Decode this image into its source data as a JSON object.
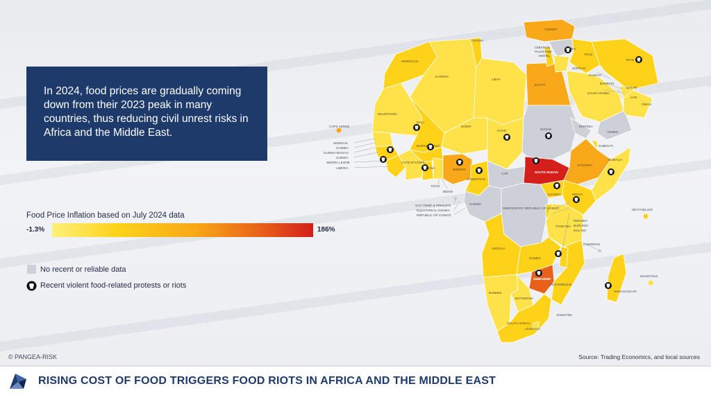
{
  "info_box": {
    "text": "In 2024, food prices are gradually coming down from their 2023 peak in many countries, thus reducing civil unrest risks in Africa and the Middle East."
  },
  "legend": {
    "title": "Food Price Inflation based on July 2024 data",
    "min_label": "-1.3%",
    "max_label": "186%",
    "no_data_label": "No recent or reliable data",
    "riot_label": "Recent violent food-related protests or riots"
  },
  "colors": {
    "low": "#fff07a",
    "mid": "#ffd21a",
    "high": "#f8a818",
    "very_high": "#e8601a",
    "max": "#d41f1a",
    "no_data": "#cdd0d6",
    "brand": "#1d3a6b"
  },
  "map": {
    "countries": {
      "turkey": "TURKEY",
      "syria": "SYRIA",
      "lebanon": "LEBANON",
      "palestine": "PALESTINE",
      "israel": "ISRAEL",
      "jordan": "JORDAN",
      "iraq": "IRAQ",
      "iran": "IRAN",
      "kuwait": "KUWAIT",
      "bahrain": "BAHRAIN",
      "qatar": "QATAR",
      "uae": "UAE",
      "oman": "OMAN",
      "saudi_arabia": "SAUDI ARABIA",
      "yemen": "YEMEN",
      "tunisia": "TUNISIA",
      "morocco": "MOROCCO",
      "algeria": "ALGERIA",
      "libya": "LIBYA",
      "egypt": "EGYPT",
      "mauritania": "MAURITANIA",
      "mali": "MALI",
      "niger": "NIGER",
      "chad": "CHAD",
      "sudan": "SUDAN",
      "eritrea": "ERITREA",
      "djibouti": "DJIBOUTI",
      "cape_verde": "CAPE VERDE",
      "senegal": "SENEGAL",
      "gambia": "GAMBIA",
      "guinea_bissau": "GUINEA-BISSAU",
      "guinea": "GUINEA",
      "sierra_leone": "SIERRA LEONE",
      "liberia": "LIBERIA",
      "burkina_faso": "BURKINA FASO",
      "cote_divoire": "COTE D'IVOIRE",
      "ghana": "GHANA",
      "togo": "TOGO",
      "benin": "BENIN",
      "nigeria": "NIGERIA",
      "cameroon": "CAMEROON",
      "car": "CAR",
      "south_sudan": "SOUTH SUDAN",
      "ethiopia": "ETHIOPIA",
      "somalia": "SOMALIA",
      "uganda": "UGANDA",
      "kenya": "KENYA",
      "gabon": "GABON",
      "sao_tome": "SAO TOME & PRINCIPE",
      "equatorial_guinea": "EQUATORIAL GUINEA",
      "rep_congo": "REPUBLIC OF CONGO",
      "drc": "DEMOCRATIC REPUBLIC OF CONGO",
      "rwanda": "RWANDA",
      "burundi": "BURUNDI",
      "tanzania": "TANZANIA",
      "malawi": "MALAWI",
      "seychelles": "SEYCHELLES",
      "comoros": "COMOROS",
      "angola": "ANGOLA",
      "zambia": "ZAMBIA",
      "zimbabwe": "ZIMBABWE",
      "mozambique": "MOZAMBIQUE",
      "madagascar": "MADAGASCAR",
      "mauritius": "MAURITIUS",
      "namibia": "NAMIBIA",
      "botswana": "BOTSWANA",
      "eswatini": "ESWATINI",
      "lesotho": "LESOTHO",
      "south_africa": "SOUTH AFRICA"
    }
  },
  "copyright": "© PANGEA-RISK",
  "source": "Source: Trading Economics, and local sources",
  "footer": {
    "title": "RISING COST OF FOOD TRIGGERS FOOD RIOTS IN AFRICA AND THE MIDDLE EAST"
  }
}
